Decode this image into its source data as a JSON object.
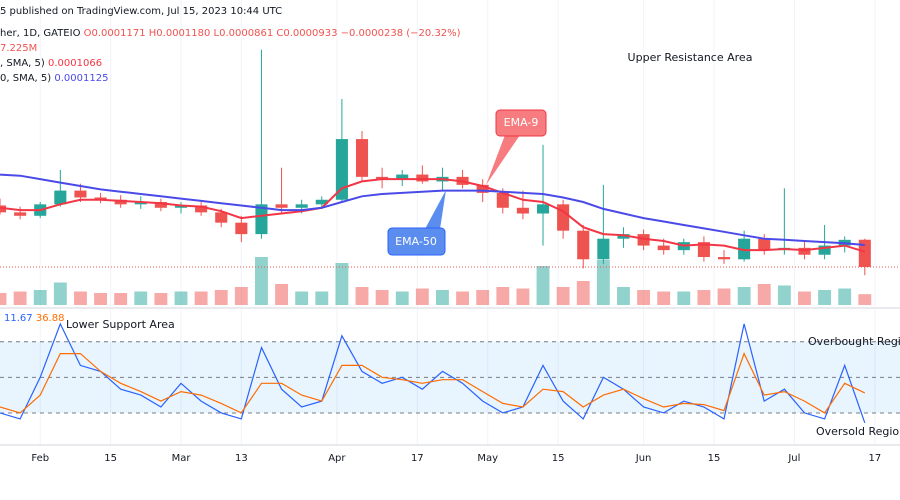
{
  "header": {
    "published": "5 published on TradingView.com, Jul 15, 2023 10:44 UTC",
    "symbol": "her, 1D, GATEIO",
    "ohlc": "O0.0001171 H0.0001180 L0.0000861 C0.0000933",
    "change": "−0.0000238 (−20.32%)",
    "volume": "7.225M"
  },
  "chart_data": [
    {
      "type": "candlestick",
      "x": [
        24,
        28,
        32,
        36,
        40,
        44,
        48,
        52,
        56,
        60,
        64,
        68,
        72,
        76,
        80,
        84,
        88,
        92,
        96,
        100,
        104,
        108,
        112,
        116,
        120,
        124,
        128,
        132,
        136,
        140,
        144,
        148,
        152,
        156,
        160,
        164,
        168,
        172,
        176,
        180,
        184,
        188,
        192,
        196
      ],
      "open": [
        0.000147,
        0.000141,
        0.000138,
        0.000148,
        0.00016,
        0.000154,
        0.000152,
        0.000148,
        0.00015,
        0.000145,
        0.000147,
        0.000141,
        0.000132,
        0.000122,
        0.000148,
        0.000145,
        0.000148,
        0.000152,
        0.000205,
        0.000172,
        0.00017,
        0.000174,
        0.000168,
        0.000172,
        0.000165,
        0.000158,
        0.000145,
        0.00014,
        0.000148,
        0.000125,
        0.0001,
        0.000118,
        0.000122,
        0.000112,
        0.000108,
        0.000115,
        0.000102,
        0.0001,
        0.000118,
        0.000108,
        0.00011,
        0.000104,
        0.000112,
        0.0001171
      ],
      "high": [
        0.000153,
        0.000146,
        0.00015,
        0.000178,
        0.000166,
        0.000158,
        0.000156,
        0.000155,
        0.000153,
        0.00015,
        0.00015,
        0.000144,
        0.000138,
        0.000283,
        0.00018,
        0.000152,
        0.000155,
        0.00024,
        0.000212,
        0.00018,
        0.000178,
        0.000182,
        0.00018,
        0.000178,
        0.00017,
        0.000162,
        0.00016,
        0.0002,
        0.000152,
        0.00013,
        0.000165,
        0.000128,
        0.000126,
        0.000118,
        0.000118,
        0.00012,
        0.000108,
        0.000125,
        0.000122,
        0.000162,
        0.000116,
        0.00013,
        0.00012,
        0.000118
      ],
      "low": [
        0.000139,
        0.000135,
        0.000136,
        0.000146,
        0.00015,
        0.000149,
        0.000145,
        0.000144,
        0.000142,
        0.00014,
        0.000138,
        0.000128,
        0.000115,
        0.000118,
        0.00014,
        0.00014,
        0.000144,
        0.00015,
        0.000168,
        0.000162,
        0.000164,
        0.000166,
        0.00016,
        0.000162,
        0.00015,
        0.00014,
        0.000135,
        0.000112,
        0.000118,
        9.2e-05,
        9.6e-05,
        0.00011,
        0.000108,
        0.000104,
        0.000104,
        9.8e-05,
        9.6e-05,
        9.8e-05,
        0.000104,
        0.000104,
        0.0001,
        0.0001,
        0.000106,
        8.61e-05
      ],
      "close": [
        0.000141,
        0.000138,
        0.000148,
        0.00016,
        0.000154,
        0.000152,
        0.000148,
        0.00015,
        0.000145,
        0.000147,
        0.000141,
        0.000132,
        0.000122,
        0.000148,
        0.000145,
        0.000148,
        0.000152,
        0.000205,
        0.000172,
        0.00017,
        0.000174,
        0.000168,
        0.000172,
        0.000165,
        0.000158,
        0.000145,
        0.00014,
        0.000148,
        0.000125,
        0.0001,
        0.000118,
        0.000122,
        0.000112,
        0.000108,
        0.000115,
        0.000102,
        0.0001,
        0.000118,
        0.000108,
        0.00011,
        0.000104,
        0.000112,
        0.000117,
        9.33e-05
      ],
      "up_color": "#26a69a",
      "down_color": "#ef5350",
      "series": [
        {
          "name": ", SMA, 5)",
          "color": "#f23645",
          "values": [
            0.000145,
            0.000143,
            0.000143,
            0.000148,
            0.000152,
            0.000152,
            0.000151,
            0.00015,
            0.000149,
            0.000147,
            0.000146,
            0.000142,
            0.000136,
            0.000138,
            0.00014,
            0.000142,
            0.000145,
            0.000162,
            0.000168,
            0.00017,
            0.00017,
            0.00017,
            0.00017,
            0.000168,
            0.000164,
            0.000158,
            0.000152,
            0.00015,
            0.000142,
            0.000128,
            0.000122,
            0.000121,
            0.000118,
            0.000116,
            0.000112,
            0.000113,
            0.000112,
            0.000108,
            0.000108,
            0.000109,
            0.000108,
            0.00011,
            0.000112,
            0.0001066
          ]
        },
        {
          "name": "0, SMA, 5)",
          "color": "#4a4ae8",
          "values": [
            0.000174,
            0.000173,
            0.00017,
            0.000167,
            0.000164,
            0.000161,
            0.000159,
            0.000157,
            0.000155,
            0.000153,
            0.000151,
            0.000149,
            0.000147,
            0.000145,
            0.000143,
            0.000143,
            0.000145,
            0.00015,
            0.000155,
            0.000157,
            0.000158,
            0.000159,
            0.00016,
            0.00016,
            0.00016,
            0.000159,
            0.000158,
            0.000157,
            0.000154,
            0.00015,
            0.000144,
            0.00014,
            0.000136,
            0.000133,
            0.00013,
            0.000127,
            0.000124,
            0.000121,
            0.000118,
            0.000117,
            0.000116,
            0.000115,
            0.000114,
            0.0001125
          ]
        }
      ],
      "volume": {
        "values": [
          8,
          9,
          10,
          15,
          9,
          8,
          8,
          9,
          8,
          9,
          9,
          10,
          12,
          32,
          14,
          9,
          9,
          28,
          12,
          10,
          9,
          11,
          10,
          9,
          10,
          12,
          11,
          26,
          12,
          16,
          30,
          12,
          10,
          9,
          9,
          10,
          11,
          12,
          14,
          13,
          9,
          10,
          11,
          7.225
        ],
        "ylim": [
          0,
          40
        ]
      },
      "xlim": [
        24,
        203
      ],
      "ylim": [
        6.01e-05,
        0.0002915
      ],
      "annotations": [
        "Upper Resistance Area",
        "EMA-9",
        "EMA-50"
      ]
    },
    {
      "type": "line",
      "x": [
        24,
        28,
        32,
        36,
        40,
        44,
        48,
        52,
        56,
        60,
        64,
        68,
        72,
        76,
        80,
        84,
        88,
        92,
        96,
        100,
        104,
        108,
        112,
        116,
        120,
        124,
        128,
        132,
        136,
        140,
        144,
        148,
        152,
        156,
        160,
        164,
        168,
        172,
        176,
        180,
        184,
        188,
        192,
        196
      ],
      "series": [
        {
          "color": "#2962ff",
          "values": [
            20,
            15,
            50,
            95,
            60,
            55,
            40,
            35,
            25,
            45,
            30,
            20,
            15,
            75,
            40,
            25,
            30,
            85,
            55,
            45,
            50,
            40,
            55,
            45,
            30,
            20,
            25,
            60,
            30,
            15,
            50,
            40,
            25,
            20,
            30,
            25,
            15,
            95,
            30,
            40,
            20,
            15,
            60,
            11.67
          ]
        },
        {
          "color": "#ff6d00",
          "values": [
            25,
            20,
            35,
            70,
            70,
            55,
            45,
            38,
            30,
            38,
            35,
            28,
            20,
            45,
            45,
            35,
            30,
            60,
            60,
            50,
            48,
            45,
            48,
            48,
            38,
            28,
            25,
            40,
            38,
            25,
            35,
            40,
            32,
            25,
            28,
            27,
            22,
            70,
            35,
            38,
            30,
            20,
            45,
            36.88
          ]
        }
      ],
      "levels": [
        80,
        50,
        20
      ],
      "xlim": [
        24,
        203
      ],
      "ylim": [
        -7,
        105
      ],
      "xticks": [
        {
          "value": 32,
          "label": "Feb"
        },
        {
          "value": 46,
          "label": "15"
        },
        {
          "value": 60,
          "label": "Mar"
        },
        {
          "value": 72,
          "label": "13"
        },
        {
          "value": 91,
          "label": "Apr"
        },
        {
          "value": 107,
          "label": "17"
        },
        {
          "value": 121,
          "label": "May"
        },
        {
          "value": 135,
          "label": "15"
        },
        {
          "value": 152,
          "label": "Jun"
        },
        {
          "value": 166,
          "label": "15"
        },
        {
          "value": 182,
          "label": "Jul"
        },
        {
          "value": 198,
          "label": "17"
        }
      ],
      "grid": true,
      "annotations": [
        "Lower Support Area",
        "Overbought Regio",
        "Oversold Region"
      ]
    }
  ]
}
